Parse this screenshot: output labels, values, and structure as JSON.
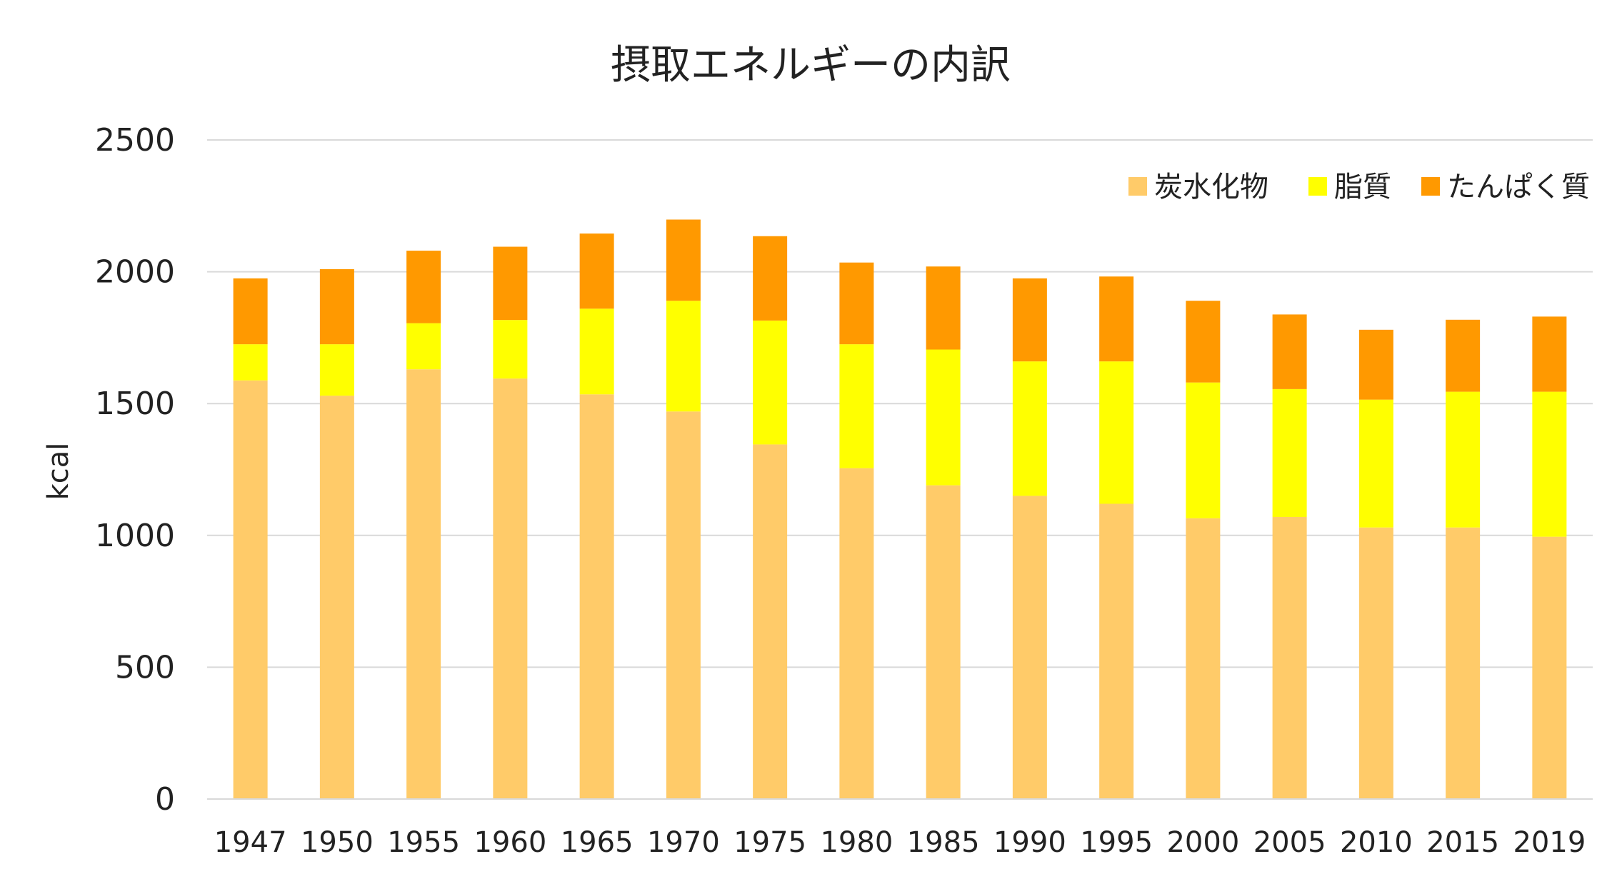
{
  "chart_data": {
    "type": "bar",
    "stacked": true,
    "title": "摂取エネルギーの内訳",
    "xlabel": "",
    "ylabel": "kcal",
    "ylim": [
      0,
      2500
    ],
    "yticks": [
      "0",
      "500",
      "1000",
      "1500",
      "2000",
      "2500"
    ],
    "grid": true,
    "legend_position": "top-right",
    "categories": [
      "1947",
      "1950",
      "1955",
      "1960",
      "1965",
      "1970",
      "1975",
      "1980",
      "1985",
      "1990",
      "1995",
      "2000",
      "2005",
      "2010",
      "2015",
      "2019"
    ],
    "series": [
      {
        "name": "炭水化物",
        "color": "#FFCB69",
        "values": [
          1588,
          1530,
          1630,
          1595,
          1535,
          1470,
          1345,
          1255,
          1190,
          1150,
          1120,
          1065,
          1070,
          1030,
          1030,
          995
        ]
      },
      {
        "name": "脂質",
        "color": "#FFFF00",
        "values": [
          137,
          195,
          175,
          222,
          325,
          420,
          470,
          470,
          515,
          510,
          540,
          515,
          485,
          485,
          515,
          550
        ]
      },
      {
        "name": "たんぱく質",
        "color": "#FF9900",
        "values": [
          250,
          285,
          275,
          278,
          285,
          308,
          320,
          310,
          315,
          315,
          322,
          310,
          283,
          265,
          273,
          285
        ]
      }
    ]
  }
}
